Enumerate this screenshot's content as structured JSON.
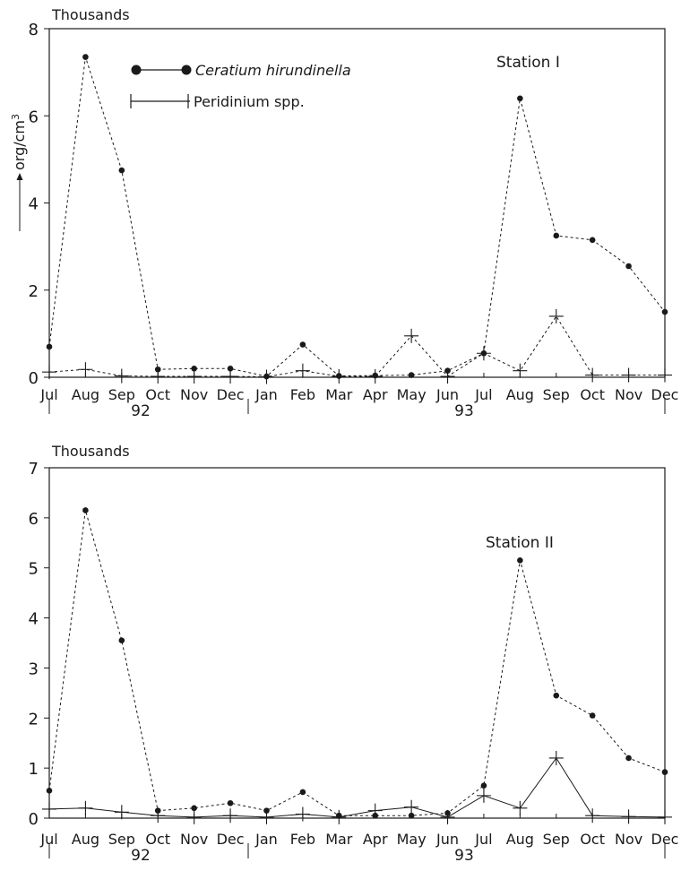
{
  "chart_data": [
    {
      "type": "line",
      "title": "Station I",
      "unit_label": "Thousands",
      "ylabel": "org/cm3",
      "ylim": [
        0,
        8
      ],
      "yticks": [
        0,
        2,
        4,
        6,
        8
      ],
      "categories": [
        "Jul",
        "Aug",
        "Sep",
        "Oct",
        "Nov",
        "Dec",
        "Jan",
        "Feb",
        "Mar",
        "Apr",
        "May",
        "Jun",
        "Jul",
        "Aug",
        "Sep",
        "Oct",
        "Nov",
        "Dec"
      ],
      "year_labels": [
        "92",
        "93"
      ],
      "grid": false,
      "legend_position": "top-left",
      "series": [
        {
          "name": "Ceratium hirundinella",
          "marker": "dot",
          "line": "dashed",
          "values": [
            0.7,
            7.35,
            4.75,
            0.18,
            0.2,
            0.2,
            0.02,
            0.75,
            0.03,
            0.04,
            0.05,
            0.15,
            0.55,
            6.4,
            3.25,
            3.15,
            2.55,
            1.5
          ]
        },
        {
          "name": "Peridinium spp.",
          "marker": "plus",
          "line": "dashed",
          "values": [
            0.12,
            0.18,
            0.03,
            0.02,
            0.02,
            0.02,
            0.01,
            0.15,
            0.02,
            0.02,
            0.95,
            0.02,
            0.55,
            0.15,
            1.4,
            0.05,
            0.05,
            0.05
          ]
        }
      ]
    },
    {
      "type": "line",
      "title": "Station II",
      "unit_label": "Thousands",
      "ylabel": "",
      "ylim": [
        0,
        7
      ],
      "yticks": [
        0,
        1,
        2,
        3,
        4,
        5,
        6,
        7
      ],
      "categories": [
        "Jul",
        "Aug",
        "Sep",
        "Oct",
        "Nov",
        "Dec",
        "Jan",
        "Feb",
        "Mar",
        "Apr",
        "May",
        "Jun",
        "Jul",
        "Aug",
        "Sep",
        "Oct",
        "Nov",
        "Dec"
      ],
      "year_labels": [
        "92",
        "93"
      ],
      "grid": false,
      "legend_position": "none",
      "series": [
        {
          "name": "Ceratium hirundinella",
          "marker": "dot",
          "line": "dashed",
          "values": [
            0.55,
            6.15,
            3.55,
            0.15,
            0.2,
            0.3,
            0.15,
            0.52,
            0.05,
            0.05,
            0.05,
            0.1,
            0.65,
            5.15,
            2.45,
            2.05,
            1.2,
            0.92
          ]
        },
        {
          "name": "Peridinium spp.",
          "marker": "plus",
          "line": "solid",
          "values": [
            0.18,
            0.2,
            0.12,
            0.05,
            0.02,
            0.05,
            0.02,
            0.08,
            0.02,
            0.15,
            0.22,
            0.02,
            0.45,
            0.2,
            1.2,
            0.05,
            0.03,
            0.02
          ]
        }
      ]
    }
  ]
}
